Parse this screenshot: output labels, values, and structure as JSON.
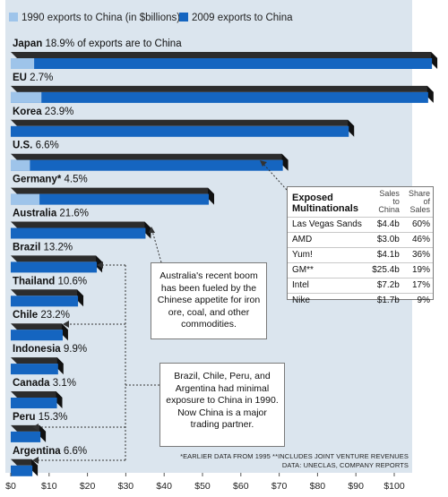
{
  "chart_data": {
    "type": "bar",
    "orientation": "horizontal",
    "series": [
      {
        "name": "1990 exports to China (in $billions)",
        "color": "#9ec4ea",
        "values": [
          6.1,
          8.0,
          0,
          5.0,
          7.5,
          0,
          0,
          0,
          0,
          0,
          0,
          0,
          0
        ]
      },
      {
        "name": "2009 exports to China",
        "color": "#1565c0",
        "values": [
          109.6,
          108.6,
          87.9,
          70.7,
          51.4,
          34.9,
          22.2,
          17.3,
          13.3,
          12.1,
          11.8,
          7.5,
          5.4
        ]
      }
    ],
    "categories": [
      "Japan",
      "EU",
      "Korea",
      "U.S.",
      "Germany*",
      "Australia",
      "Brazil",
      "Thailand",
      "Chile",
      "Indonesia",
      "Canada",
      "Peru",
      "Argentina"
    ],
    "category_notes": [
      "18.9% of exports are to China",
      "2.7%",
      "23.9%",
      "6.6%",
      "4.5%",
      "21.6%",
      "13.2%",
      "10.6%",
      "23.2%",
      "9.9%",
      "3.1%",
      "15.3%",
      "6.6%"
    ],
    "x_ticks": [
      "$0",
      "$10",
      "$20",
      "$30",
      "$40",
      "$50",
      "$60",
      "$70",
      "$80",
      "$90",
      "$100"
    ],
    "xlim": [
      0,
      112
    ],
    "grid": false,
    "legend_position": "top-left"
  },
  "annotations": {
    "australia": "Australia's recent boom has been fueled by the Chinese appetite for iron ore, coal, and other commodities.",
    "latin_america": "Brazil, Chile, Peru, and Argentina had minimal exposure to China in 1990. Now China is a major trading partner."
  },
  "table": {
    "title": "Exposed Multinationals",
    "col_sales": "Sales to China",
    "col_share": "Share of Sales",
    "rows": [
      {
        "name": "Las Vegas Sands",
        "sales": "$4.4b",
        "share": "60%"
      },
      {
        "name": "AMD",
        "sales": "$3.0b",
        "share": "46%"
      },
      {
        "name": "Yum!",
        "sales": "$4.1b",
        "share": "36%"
      },
      {
        "name": "GM**",
        "sales": "$25.4b",
        "share": "19%"
      },
      {
        "name": "Intel",
        "sales": "$7.2b",
        "share": "17%"
      },
      {
        "name": "Nike",
        "sales": "$1.7b",
        "share": "9%"
      }
    ]
  },
  "footnotes": {
    "line1": "*EARLIER DATA FROM 1995  **INCLUDES JOINT VENTURE REVENUES",
    "line2": "DATA: UNECLAS, COMPANY REPORTS"
  },
  "colors": {
    "panel": "#dbe5ee",
    "bar_top": "#2c2c2c",
    "bar_side": "#111111"
  }
}
